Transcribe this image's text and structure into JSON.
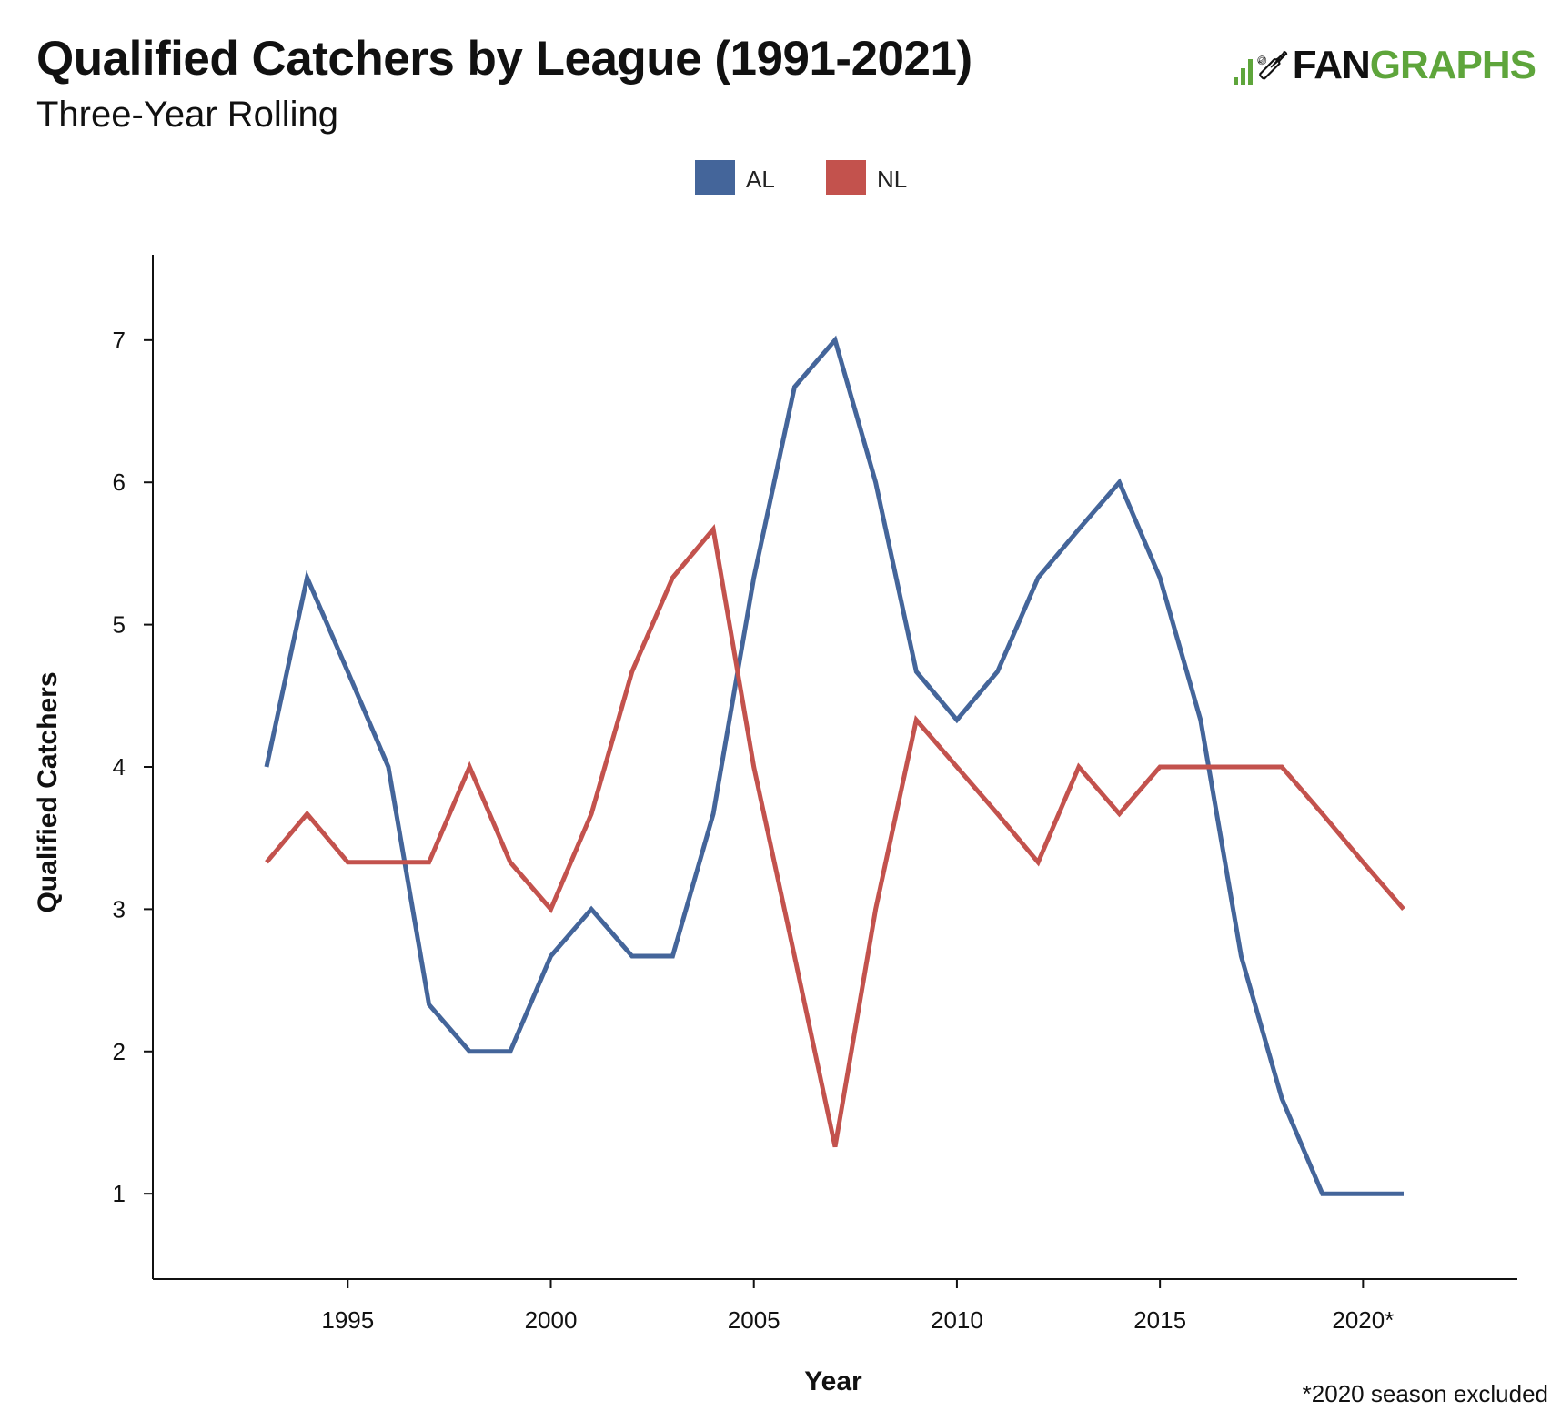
{
  "header": {
    "title": "Qualified Catchers by League (1991-2021)",
    "subtitle": "Three-Year Rolling",
    "logo_fan": "FAN",
    "logo_graphs": "GRAPHS",
    "logo_color": "#5ea53b"
  },
  "footnote": "*2020 season excluded",
  "chart_data": {
    "type": "line",
    "title": "Qualified Catchers by League (1991-2021)",
    "subtitle": "Three-Year Rolling",
    "xlabel": "Year",
    "ylabel": "Qualified Catchers",
    "xlim": [
      1990.2,
      2023.8
    ],
    "ylim": [
      0.4,
      7.6
    ],
    "x_ticks": [
      1995,
      2000,
      2005,
      2010,
      2015,
      2020
    ],
    "x_tick_labels": [
      "1995",
      "2000",
      "2005",
      "2010",
      "2015",
      "2020*"
    ],
    "y_ticks": [
      1,
      2,
      3,
      4,
      5,
      6,
      7
    ],
    "y_tick_labels": [
      "1",
      "2",
      "3",
      "4",
      "5",
      "6",
      "7"
    ],
    "grid": false,
    "legend_position": "top-center",
    "x": [
      1993,
      1994,
      1995,
      1996,
      1997,
      1998,
      1999,
      2000,
      2001,
      2002,
      2003,
      2004,
      2005,
      2006,
      2007,
      2008,
      2009,
      2010,
      2011,
      2012,
      2013,
      2014,
      2015,
      2016,
      2017,
      2018,
      2019,
      2020,
      2021
    ],
    "series": [
      {
        "name": "AL",
        "color": "#44659a",
        "values": [
          4,
          5.33,
          4.67,
          4,
          2.33,
          2,
          2,
          2.67,
          3,
          2.67,
          2.67,
          3.67,
          5.33,
          6.67,
          7,
          6,
          4.67,
          4.33,
          4.67,
          5.33,
          5.67,
          6,
          5.33,
          4.33,
          2.67,
          1.67,
          1,
          1,
          1
        ]
      },
      {
        "name": "NL",
        "color": "#c3524d",
        "values": [
          3.33,
          3.67,
          3.33,
          3.33,
          3.33,
          4,
          3.33,
          3,
          3.67,
          4.67,
          5.33,
          5.67,
          4,
          2.67,
          1.33,
          3,
          4.33,
          4,
          3.67,
          3.33,
          4,
          3.67,
          4,
          4,
          4,
          4,
          3.67,
          3.33,
          3
        ]
      }
    ]
  }
}
